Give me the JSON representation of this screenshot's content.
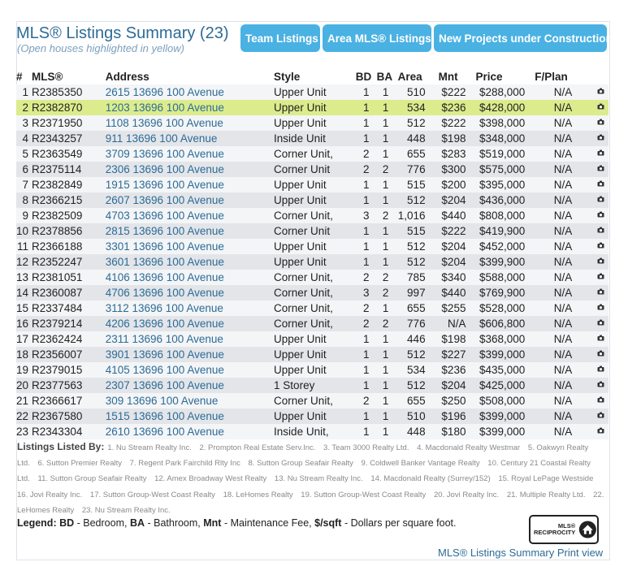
{
  "header": {
    "title": "MLS® Listings Summary (23)",
    "subtitle": "(Open houses highlighted in yellow)"
  },
  "buttons": {
    "team": "Team Listings",
    "area": "Area MLS® Listings",
    "new_projects": "New Projects under Construction",
    "chevron": "›"
  },
  "table": {
    "headers": {
      "num": "#",
      "mls": "MLS®",
      "address": "Address",
      "style": "Style",
      "bd": "BD",
      "ba": "BA",
      "area": "Area",
      "mnt": "Mnt",
      "price": "Price",
      "fplan": "F/Plan"
    },
    "highlight_color": "#dcec8c",
    "rows": [
      {
        "num": "1",
        "mls": "R2385350",
        "address": "2615 13696 100 Avenue",
        "style": "Upper Unit",
        "bd": "1",
        "ba": "1",
        "area": "510",
        "mnt": "$222",
        "price": "$288,000",
        "fplan": "N/A",
        "open": false
      },
      {
        "num": "2",
        "mls": "R2382870",
        "address": "1203 13696 100 Avenue",
        "style": "Upper Unit",
        "bd": "1",
        "ba": "1",
        "area": "534",
        "mnt": "$236",
        "price": "$428,000",
        "fplan": "N/A",
        "open": true
      },
      {
        "num": "3",
        "mls": "R2371950",
        "address": "1108 13696 100 Avenue",
        "style": "Upper Unit",
        "bd": "1",
        "ba": "1",
        "area": "512",
        "mnt": "$222",
        "price": "$398,000",
        "fplan": "N/A",
        "open": false
      },
      {
        "num": "4",
        "mls": "R2343257",
        "address": "911 13696 100 Avenue",
        "style": "Inside Unit",
        "bd": "1",
        "ba": "1",
        "area": "448",
        "mnt": "$198",
        "price": "$348,000",
        "fplan": "N/A",
        "open": false
      },
      {
        "num": "5",
        "mls": "R2363549",
        "address": "3709 13696 100 Avenue",
        "style": "Corner Unit,",
        "bd": "2",
        "ba": "1",
        "area": "655",
        "mnt": "$283",
        "price": "$519,000",
        "fplan": "N/A",
        "open": false
      },
      {
        "num": "6",
        "mls": "R2375114",
        "address": "2306 13696 100 Avenue",
        "style": "Corner Unit",
        "bd": "2",
        "ba": "2",
        "area": "776",
        "mnt": "$300",
        "price": "$575,000",
        "fplan": "N/A",
        "open": false
      },
      {
        "num": "7",
        "mls": "R2382849",
        "address": "1915 13696 100 Avenue",
        "style": "Upper Unit",
        "bd": "1",
        "ba": "1",
        "area": "515",
        "mnt": "$200",
        "price": "$395,000",
        "fplan": "N/A",
        "open": false
      },
      {
        "num": "8",
        "mls": "R2366215",
        "address": "2607 13696 100 Avenue",
        "style": "Upper Unit",
        "bd": "1",
        "ba": "1",
        "area": "512",
        "mnt": "$204",
        "price": "$436,000",
        "fplan": "N/A",
        "open": false
      },
      {
        "num": "9",
        "mls": "R2382509",
        "address": "4703 13696 100 Avenue",
        "style": "Corner Unit,",
        "bd": "3",
        "ba": "2",
        "area": "1,016",
        "mnt": "$440",
        "price": "$808,000",
        "fplan": "N/A",
        "open": false
      },
      {
        "num": "10",
        "mls": "R2378856",
        "address": "2815 13696 100 Avenue",
        "style": "Corner Unit",
        "bd": "1",
        "ba": "1",
        "area": "515",
        "mnt": "$222",
        "price": "$419,900",
        "fplan": "N/A",
        "open": false
      },
      {
        "num": "11",
        "mls": "R2366188",
        "address": "3301 13696 100 Avenue",
        "style": "Upper Unit",
        "bd": "1",
        "ba": "1",
        "area": "512",
        "mnt": "$204",
        "price": "$452,000",
        "fplan": "N/A",
        "open": false
      },
      {
        "num": "12",
        "mls": "R2352247",
        "address": "3601 13696 100 Avenue",
        "style": "Upper Unit",
        "bd": "1",
        "ba": "1",
        "area": "512",
        "mnt": "$204",
        "price": "$399,900",
        "fplan": "N/A",
        "open": false
      },
      {
        "num": "13",
        "mls": "R2381051",
        "address": "4106 13696 100 Avenue",
        "style": "Corner Unit,",
        "bd": "2",
        "ba": "2",
        "area": "785",
        "mnt": "$340",
        "price": "$588,000",
        "fplan": "N/A",
        "open": false
      },
      {
        "num": "14",
        "mls": "R2360087",
        "address": "4706 13696 100 Avenue",
        "style": "Corner Unit,",
        "bd": "3",
        "ba": "2",
        "area": "997",
        "mnt": "$440",
        "price": "$769,900",
        "fplan": "N/A",
        "open": false
      },
      {
        "num": "15",
        "mls": "R2337484",
        "address": "3112 13696 100 Avenue",
        "style": "Corner Unit,",
        "bd": "2",
        "ba": "1",
        "area": "655",
        "mnt": "$255",
        "price": "$528,000",
        "fplan": "N/A",
        "open": false
      },
      {
        "num": "16",
        "mls": "R2379214",
        "address": "4206 13696 100 Avenue",
        "style": "Corner Unit,",
        "bd": "2",
        "ba": "2",
        "area": "776",
        "mnt": "N/A",
        "price": "$606,800",
        "fplan": "N/A",
        "open": false
      },
      {
        "num": "17",
        "mls": "R2362424",
        "address": "2311 13696 100 Avenue",
        "style": "Upper Unit",
        "bd": "1",
        "ba": "1",
        "area": "446",
        "mnt": "$198",
        "price": "$368,000",
        "fplan": "N/A",
        "open": false
      },
      {
        "num": "18",
        "mls": "R2356007",
        "address": "3901 13696 100 Avenue",
        "style": "Upper Unit",
        "bd": "1",
        "ba": "1",
        "area": "512",
        "mnt": "$227",
        "price": "$399,000",
        "fplan": "N/A",
        "open": false
      },
      {
        "num": "19",
        "mls": "R2379015",
        "address": "4105 13696 100 Avenue",
        "style": "Upper Unit",
        "bd": "1",
        "ba": "1",
        "area": "534",
        "mnt": "$236",
        "price": "$435,000",
        "fplan": "N/A",
        "open": false
      },
      {
        "num": "20",
        "mls": "R2377563",
        "address": "2307 13696 100 Avenue",
        "style": "1 Storey",
        "bd": "1",
        "ba": "1",
        "area": "512",
        "mnt": "$204",
        "price": "$425,000",
        "fplan": "N/A",
        "open": false
      },
      {
        "num": "21",
        "mls": "R2366617",
        "address": "309 13696 100 Avenue",
        "style": "Corner Unit,",
        "bd": "2",
        "ba": "1",
        "area": "655",
        "mnt": "$250",
        "price": "$508,000",
        "fplan": "N/A",
        "open": false
      },
      {
        "num": "22",
        "mls": "R2367580",
        "address": "1515 13696 100 Avenue",
        "style": "Upper Unit",
        "bd": "1",
        "ba": "1",
        "area": "510",
        "mnt": "$196",
        "price": "$399,000",
        "fplan": "N/A",
        "open": false
      },
      {
        "num": "23",
        "mls": "R2343304",
        "address": "2610 13696 100 Avenue",
        "style": "Inside Unit,",
        "bd": "1",
        "ba": "1",
        "area": "448",
        "mnt": "$180",
        "price": "$399,000",
        "fplan": "N/A",
        "open": false
      }
    ],
    "row_icon": "camera-icon"
  },
  "listed_by": {
    "label": "Listings Listed By:",
    "items": [
      "1. Nu Stream Realty Inc.",
      "2. Prompton Real Estate Serv.Inc.",
      "3. Team 3000 Realty Ltd.",
      "4. Macdonald Realty Westmar",
      "5. Oakwyn Realty Ltd.",
      "6. Sutton Premier Realty",
      "7. Regent Park Fairchild Rlty Inc",
      "8. Sutton Group Seafair Realty",
      "9. Coldwell Banker Vantage Realty",
      "10. Century 21 Coastal Realty Ltd.",
      "11. Sutton Group Seafair Realty",
      "12. Amex Broadway West Realty",
      "13. Nu Stream Realty Inc.",
      "14. Macdonald Realty (Surrey/152)",
      "15. Royal LePage Westside",
      "16. Jovi Realty Inc.",
      "17. Sutton Group-West Coast Realty",
      "18. LeHomes Realty",
      "19. Sutton Group-West Coast Realty",
      "20. Jovi Realty Inc.",
      "21. Multiple Realty Ltd.",
      "22. LeHomes Realty",
      "23. Nu Stream Realty Inc."
    ]
  },
  "legend": {
    "label": "Legend:",
    "bd_key": "BD",
    "bd_text": " - Bedroom, ",
    "ba_key": "BA",
    "ba_text": " - Bathroom, ",
    "mnt_key": "Mnt",
    "mnt_text": " - Maintenance Fee, ",
    "sqft_key": "$/sqft",
    "sqft_text": " - Dollars per square foot."
  },
  "reciprocity_logo": {
    "line1": "MLS®",
    "line2": "RECIPROCITY"
  },
  "print_link": "MLS® Listings Summary Print view",
  "colors": {
    "title": "#2c6b96",
    "button": "#4ab1e3",
    "link": "#2c6b96",
    "row_odd": "#f4f5f7",
    "row_even": "#e3e5e9"
  }
}
